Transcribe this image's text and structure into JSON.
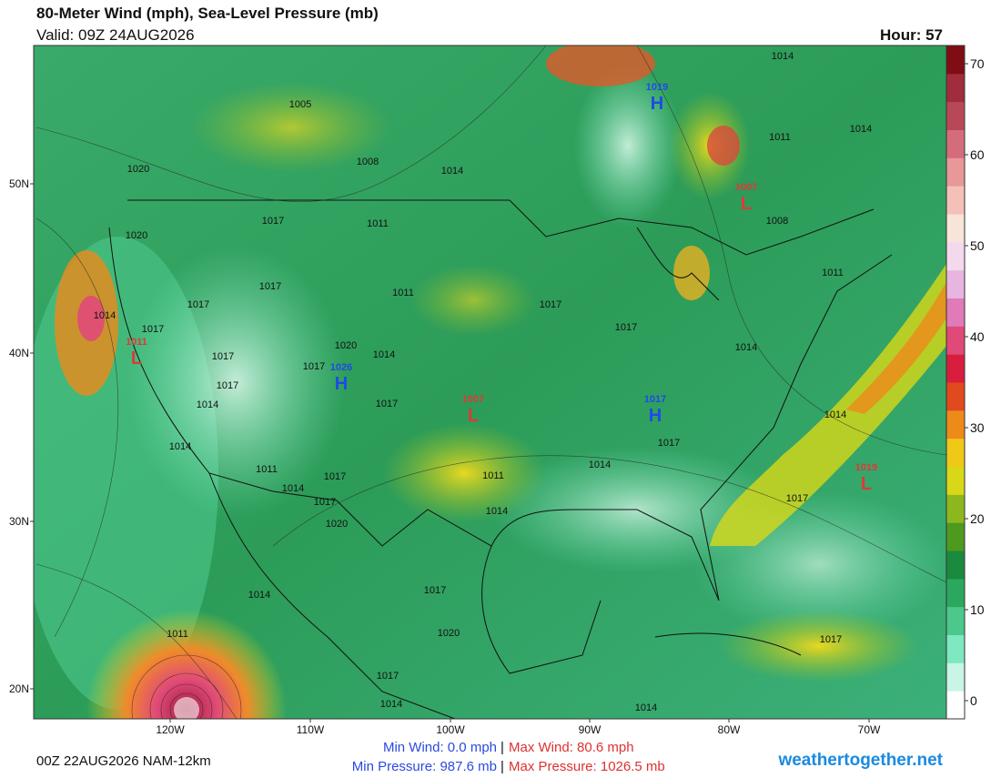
{
  "header": {
    "title": "80-Meter Wind (mph), Sea-Level Pressure (mb)",
    "valid": "Valid: 09Z 24AUG2026",
    "hour": "Hour: 57"
  },
  "map": {
    "lat_labels": [
      "50N",
      "40N",
      "30N",
      "20N"
    ],
    "lon_labels": [
      "120W",
      "110W",
      "100W",
      "90W",
      "80W",
      "70W"
    ],
    "centers": [
      {
        "letter": "H",
        "value": "1019"
      },
      {
        "letter": "L",
        "value": "1007"
      },
      {
        "letter": "L",
        "value": "1011"
      },
      {
        "letter": "H",
        "value": "1026"
      },
      {
        "letter": "L",
        "value": "1007"
      },
      {
        "letter": "H",
        "value": "1017"
      },
      {
        "letter": "L",
        "value": "1019"
      }
    ],
    "isobar_labels": [
      "1005",
      "1008",
      "1014",
      "1020",
      "1017",
      "1011",
      "1020",
      "1017",
      "1011",
      "1017",
      "1014",
      "1017",
      "1017",
      "1017",
      "1020",
      "1014",
      "1017",
      "1017",
      "1017",
      "1014",
      "1017",
      "1014",
      "1014",
      "1017",
      "1014",
      "1011",
      "1017",
      "1011",
      "1014",
      "1014",
      "1017",
      "1014",
      "1017",
      "1020",
      "1014",
      "1017",
      "1011",
      "1020",
      "1017",
      "1017",
      "1014",
      "1014",
      "1014",
      "1011",
      "1014",
      "1008",
      "1011"
    ]
  },
  "colorbar": {
    "ticks": [
      70,
      60,
      50,
      40,
      30,
      20,
      10,
      0
    ],
    "colors": [
      "#ffffff",
      "#c8f5e6",
      "#7ee8c0",
      "#4cc88c",
      "#2aa85e",
      "#1a8a3e",
      "#4e9a1e",
      "#8cb81e",
      "#d8d818",
      "#f0c818",
      "#ee8a1a",
      "#e04a1e",
      "#d81e3c",
      "#e04a78",
      "#e07ab8",
      "#e8b4e0",
      "#f4d8ec",
      "#f8e4d8",
      "#f4c0b8",
      "#e89898",
      "#d46c7c",
      "#b84858",
      "#a02c3c",
      "#800c14"
    ]
  },
  "footer": {
    "run": "00Z 22AUG2026 NAM-12km",
    "min_wind": "Min Wind:  0.0 mph",
    "max_wind": "Max Wind: 80.6 mph",
    "min_pressure": "Min Pressure: 987.6 mb",
    "max_pressure": "Max Pressure: 1026.5 mb",
    "separator": "|",
    "site": "weathertogether.net"
  }
}
